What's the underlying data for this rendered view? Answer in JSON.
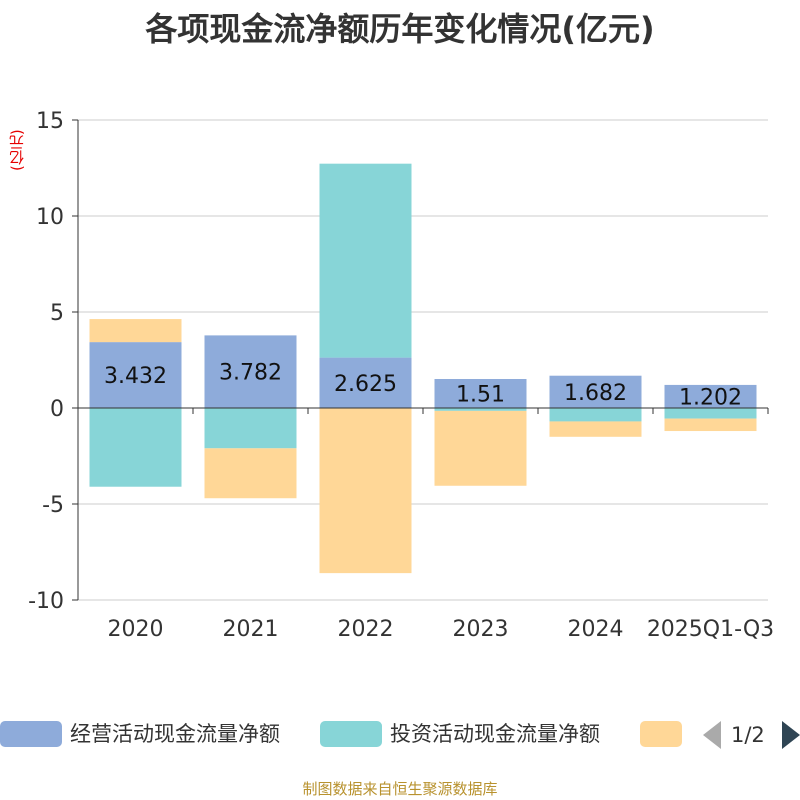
{
  "chart_data": {
    "type": "bar",
    "stacked": true,
    "title": "各项现金流净额历年变化情况(亿元)",
    "ylabel": "(亿元)",
    "xlabel": "",
    "categories": [
      "2020",
      "2021",
      "2022",
      "2023",
      "2024",
      "2025Q1-Q3"
    ],
    "ylim": [
      -10,
      15
    ],
    "yticks": [
      15,
      10,
      5,
      0,
      -5,
      -10
    ],
    "grid": true,
    "legend_position": "bottom",
    "series": [
      {
        "name": "经营活动现金流量净额",
        "color": "#8eabda",
        "values": [
          3.432,
          3.782,
          2.625,
          1.51,
          1.682,
          1.202
        ],
        "labels": [
          "3.432",
          "3.782",
          "2.625",
          "1.51",
          "1.682",
          "1.202"
        ]
      },
      {
        "name": "投资活动现金流量净额",
        "color": "#87d5d7",
        "values": [
          -4.1,
          -2.1,
          10.1,
          -0.15,
          -0.7,
          -0.55
        ]
      },
      {
        "name": "",
        "color": "#ffd797",
        "values": [
          1.2,
          -2.6,
          -8.6,
          -3.9,
          -0.8,
          -0.65
        ]
      }
    ]
  },
  "legend": {
    "page": "1/2"
  },
  "source": "制图数据来自恒生聚源数据库"
}
